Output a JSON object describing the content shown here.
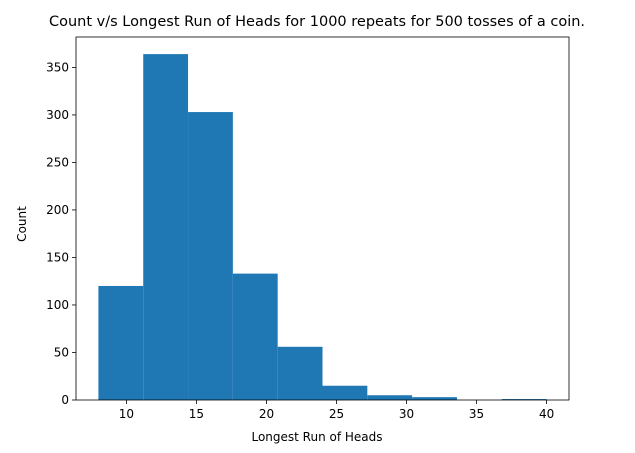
{
  "chart_data": {
    "type": "bar",
    "title": "Count v/s Longest Run of Heads for 1000 repeats for 500 tosses of a coin.",
    "xlabel": "Longest Run of Heads",
    "ylabel": "Count",
    "xlim": [
      6.4,
      41.6
    ],
    "ylim": [
      0,
      382
    ],
    "xticks": [
      10,
      15,
      20,
      25,
      30,
      35,
      40
    ],
    "yticks": [
      0,
      50,
      100,
      150,
      200,
      250,
      300,
      350
    ],
    "bin_edges": [
      8,
      11.2,
      14.4,
      17.6,
      20.8,
      24,
      27.2,
      30.4,
      33.6,
      36.8,
      40
    ],
    "values": [
      120,
      364,
      303,
      133,
      56,
      15,
      5,
      3,
      0,
      1
    ],
    "grid": false,
    "color": "#1f77b4"
  }
}
